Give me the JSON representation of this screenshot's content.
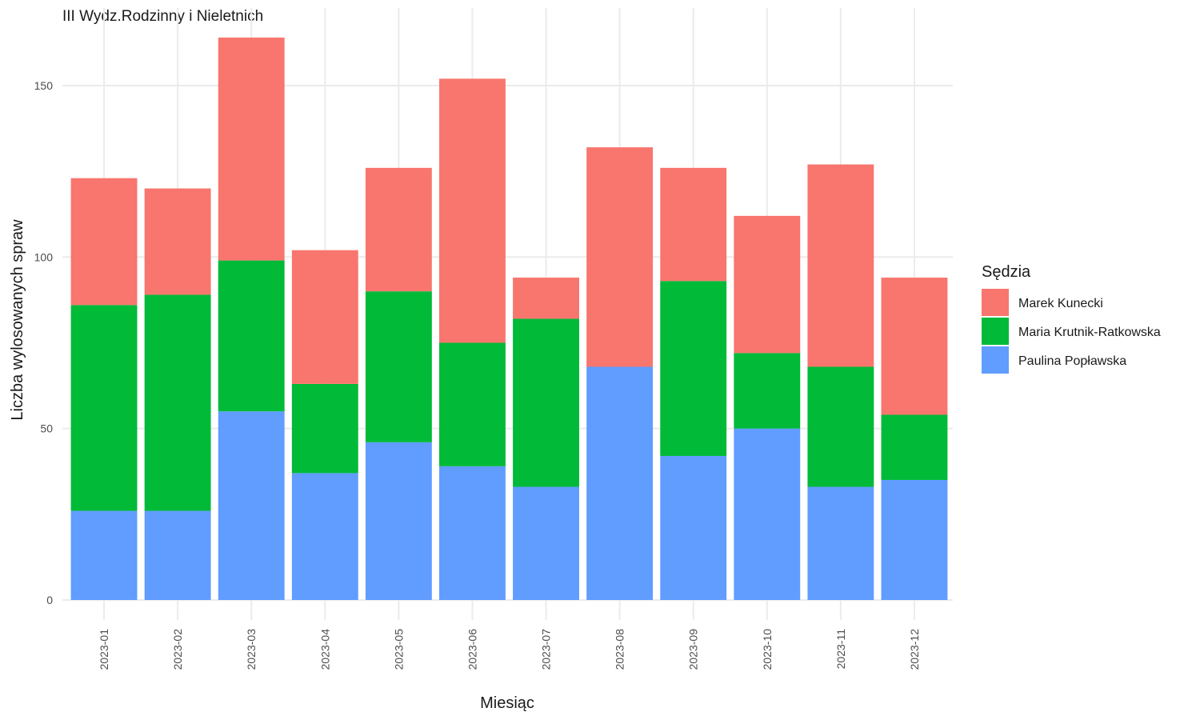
{
  "chart_data": {
    "type": "bar",
    "stacked": true,
    "title": "III Wydz.Rodzinny i Nieletnich",
    "xlabel": "Miesiąc",
    "ylabel": "Liczba wylosowanych spraw",
    "ylim": [
      0,
      170
    ],
    "yticks": [
      0,
      50,
      100,
      150
    ],
    "grid": true,
    "legend": {
      "title": "Sędzia",
      "position": "right"
    },
    "categories": [
      "2023-01",
      "2023-02",
      "2023-03",
      "2023-04",
      "2023-05",
      "2023-06",
      "2023-07",
      "2023-08",
      "2023-09",
      "2023-10",
      "2023-11",
      "2023-12"
    ],
    "series": [
      {
        "name": "Paulina Popławska",
        "color": "#619CFF",
        "values": [
          26,
          26,
          55,
          37,
          46,
          39,
          33,
          68,
          42,
          50,
          33,
          35
        ]
      },
      {
        "name": "Maria Krutnik-Ratkowska",
        "color": "#00BA38",
        "values": [
          60,
          63,
          44,
          26,
          44,
          36,
          49,
          0,
          51,
          22,
          35,
          19
        ]
      },
      {
        "name": "Marek Kunecki",
        "color": "#F8766D",
        "values": [
          37,
          31,
          65,
          39,
          36,
          77,
          12,
          64,
          33,
          40,
          59,
          40
        ]
      }
    ],
    "legend_order": [
      "Marek Kunecki",
      "Maria Krutnik-Ratkowska",
      "Paulina Popławska"
    ]
  }
}
